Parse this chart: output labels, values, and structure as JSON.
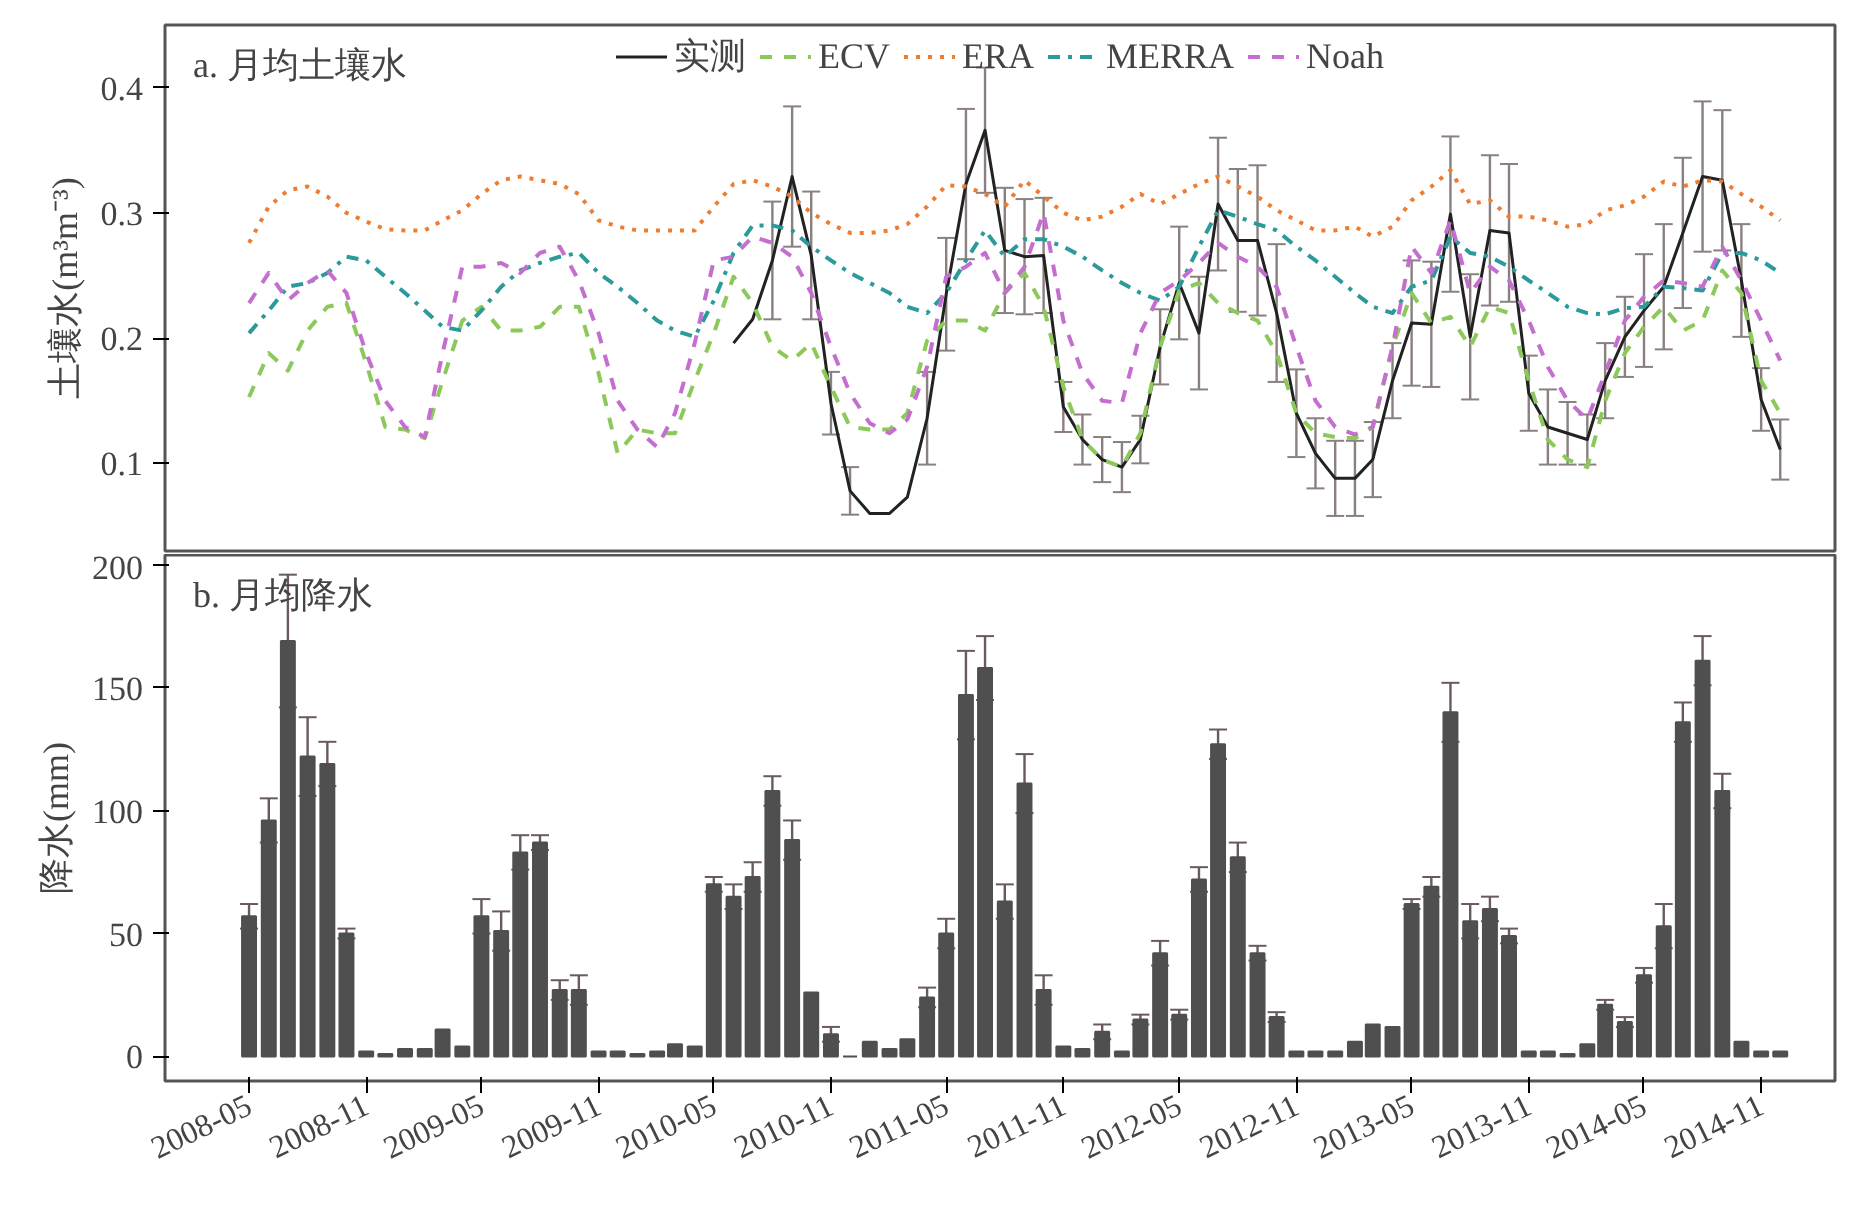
{
  "chart_data": [
    {
      "type": "line",
      "title": "a. 月均土壤水",
      "ylabel": "土壤水(m³m⁻³)",
      "x": [
        "2008-05",
        "2008-06",
        "2008-07",
        "2008-08",
        "2008-09",
        "2008-10",
        "2008-11",
        "2008-12",
        "2009-01",
        "2009-02",
        "2009-03",
        "2009-04",
        "2009-05",
        "2009-06",
        "2009-07",
        "2009-08",
        "2009-09",
        "2009-10",
        "2009-11",
        "2009-12",
        "2010-01",
        "2010-02",
        "2010-03",
        "2010-04",
        "2010-05",
        "2010-06",
        "2010-07",
        "2010-08",
        "2010-09",
        "2010-10",
        "2010-11",
        "2010-12",
        "2011-01",
        "2011-02",
        "2011-03",
        "2011-04",
        "2011-05",
        "2011-06",
        "2011-07",
        "2011-08",
        "2011-09",
        "2011-10",
        "2011-11",
        "2011-12",
        "2012-01",
        "2012-02",
        "2012-03",
        "2012-04",
        "2012-05",
        "2012-06",
        "2012-07",
        "2012-08",
        "2012-09",
        "2012-10",
        "2012-11",
        "2012-12",
        "2013-01",
        "2013-02",
        "2013-03",
        "2013-04",
        "2013-05",
        "2013-06",
        "2013-07",
        "2013-08",
        "2013-09",
        "2013-10",
        "2013-11",
        "2013-12",
        "2014-01",
        "2014-02",
        "2014-03",
        "2014-04",
        "2014-05",
        "2014-06",
        "2014-07",
        "2014-08",
        "2014-09",
        "2014-10",
        "2014-11",
        "2014-12"
      ],
      "xlim": [
        "2007-12-21",
        "2015-02-25"
      ],
      "ylim": [
        0.03,
        0.45
      ],
      "yticks": [
        0.1,
        0.2,
        0.3,
        0.4
      ],
      "tick_labels": "y",
      "grid": false,
      "legend": "top",
      "series": [
        {
          "name": "实测",
          "color": "#222222",
          "line_style": "solid",
          "values": [
            null,
            null,
            null,
            null,
            null,
            null,
            null,
            null,
            null,
            null,
            null,
            null,
            null,
            null,
            null,
            null,
            null,
            null,
            null,
            null,
            null,
            null,
            null,
            null,
            null,
            0.196,
            0.215,
            0.262,
            0.329,
            0.266,
            0.148,
            0.078,
            0.06,
            0.06,
            0.073,
            0.136,
            0.235,
            0.323,
            0.366,
            0.27,
            0.265,
            0.266,
            0.145,
            0.119,
            0.103,
            0.097,
            0.119,
            0.193,
            0.244,
            0.204,
            0.307,
            0.278,
            0.278,
            0.22,
            0.14,
            0.108,
            0.088,
            0.088,
            0.103,
            0.166,
            0.212,
            0.211,
            0.299,
            0.201,
            0.286,
            0.284,
            0.156,
            0.129,
            0.124,
            0.119,
            0.166,
            0.201,
            0.222,
            0.241,
            0.284,
            0.329,
            0.326,
            0.246,
            0.151,
            0.111
          ],
          "errors": [
            null,
            null,
            null,
            null,
            null,
            null,
            null,
            null,
            null,
            null,
            null,
            null,
            null,
            null,
            null,
            null,
            null,
            null,
            null,
            null,
            null,
            null,
            null,
            null,
            null,
            null,
            null,
            0.047,
            0.056,
            0.051,
            0.025,
            0.019,
            null,
            null,
            null,
            0.037,
            0.045,
            0.06,
            0.05,
            0.05,
            0.046,
            0.046,
            0.02,
            0.02,
            0.018,
            0.02,
            0.019,
            0.03,
            0.045,
            0.045,
            0.053,
            0.057,
            0.06,
            0.055,
            0.035,
            0.028,
            0.03,
            0.03,
            0.03,
            0.03,
            0.05,
            0.05,
            0.062,
            0.05,
            0.06,
            0.055,
            0.03,
            0.03,
            0.025,
            0.02,
            0.03,
            0.032,
            0.045,
            0.05,
            0.06,
            0.06,
            0.056,
            0.045,
            0.025,
            0.024
          ]
        },
        {
          "name": "ECV",
          "color": "#8dc95a",
          "line_style": "dashed",
          "values": [
            0.153,
            0.188,
            0.174,
            0.206,
            0.225,
            0.228,
            0.18,
            0.129,
            0.127,
            0.12,
            0.166,
            0.214,
            0.225,
            0.206,
            0.206,
            0.209,
            0.225,
            0.225,
            0.172,
            0.108,
            0.127,
            0.124,
            0.124,
            0.166,
            0.204,
            0.249,
            0.228,
            0.193,
            0.182,
            0.196,
            0.161,
            0.129,
            0.127,
            0.127,
            0.14,
            0.198,
            0.214,
            0.214,
            0.206,
            0.236,
            0.252,
            0.225,
            0.161,
            0.119,
            0.103,
            0.097,
            0.124,
            0.193,
            0.238,
            0.244,
            0.228,
            0.22,
            0.214,
            0.188,
            0.14,
            0.124,
            0.121,
            0.12,
            0.129,
            0.193,
            0.236,
            0.212,
            0.217,
            0.193,
            0.225,
            0.22,
            0.166,
            0.119,
            0.103,
            0.097,
            0.15,
            0.188,
            0.209,
            0.225,
            0.206,
            0.214,
            0.254,
            0.236,
            0.166,
            0.14
          ]
        },
        {
          "name": "ERA",
          "color": "#ee7d31",
          "line_style": "dotted",
          "values": [
            0.276,
            0.305,
            0.318,
            0.321,
            0.313,
            0.3,
            0.293,
            0.287,
            0.286,
            0.286,
            0.294,
            0.302,
            0.315,
            0.326,
            0.329,
            0.326,
            0.323,
            0.315,
            0.294,
            0.289,
            0.286,
            0.286,
            0.286,
            0.286,
            0.305,
            0.323,
            0.326,
            0.321,
            0.313,
            0.3,
            0.291,
            0.284,
            0.284,
            0.286,
            0.291,
            0.305,
            0.322,
            0.321,
            0.315,
            0.305,
            0.326,
            0.313,
            0.3,
            0.294,
            0.297,
            0.305,
            0.315,
            0.307,
            0.315,
            0.323,
            0.329,
            0.321,
            0.313,
            0.302,
            0.294,
            0.286,
            0.286,
            0.289,
            0.281,
            0.289,
            0.31,
            0.321,
            0.334,
            0.307,
            0.31,
            0.297,
            0.297,
            0.294,
            0.289,
            0.291,
            0.302,
            0.306,
            0.313,
            0.325,
            0.321,
            0.326,
            0.325,
            0.315,
            0.305,
            0.294
          ]
        },
        {
          "name": "MERRA",
          "color": "#2a9a9a",
          "line_style": "dashdot",
          "values": [
            0.204,
            0.222,
            0.241,
            0.244,
            0.252,
            0.265,
            0.262,
            0.249,
            0.236,
            0.222,
            0.209,
            0.206,
            0.222,
            0.241,
            0.254,
            0.26,
            0.265,
            0.268,
            0.252,
            0.241,
            0.228,
            0.214,
            0.206,
            0.201,
            0.23,
            0.268,
            0.29,
            0.29,
            0.286,
            0.273,
            0.262,
            0.252,
            0.244,
            0.236,
            0.225,
            0.22,
            0.236,
            0.262,
            0.286,
            0.265,
            0.279,
            0.279,
            0.273,
            0.265,
            0.254,
            0.244,
            0.236,
            0.23,
            0.241,
            0.273,
            0.302,
            0.297,
            0.291,
            0.286,
            0.273,
            0.262,
            0.249,
            0.236,
            0.225,
            0.22,
            0.241,
            0.246,
            0.281,
            0.268,
            0.265,
            0.257,
            0.246,
            0.236,
            0.225,
            0.22,
            0.219,
            0.224,
            0.225,
            0.241,
            0.24,
            0.238,
            0.268,
            0.268,
            0.262,
            0.252
          ]
        },
        {
          "name": "Noah",
          "color": "#c46fcf",
          "line_style": "dashed",
          "values": [
            0.228,
            0.252,
            0.23,
            0.244,
            0.254,
            0.236,
            0.188,
            0.15,
            0.129,
            0.121,
            0.188,
            0.257,
            0.257,
            0.26,
            0.252,
            0.268,
            0.273,
            0.246,
            0.204,
            0.15,
            0.127,
            0.113,
            0.14,
            0.196,
            0.262,
            0.265,
            0.281,
            0.276,
            0.265,
            0.236,
            0.193,
            0.156,
            0.132,
            0.124,
            0.135,
            0.177,
            0.249,
            0.257,
            0.268,
            0.236,
            0.257,
            0.3,
            0.214,
            0.172,
            0.15,
            0.148,
            0.204,
            0.236,
            0.246,
            0.26,
            0.276,
            0.265,
            0.257,
            0.241,
            0.193,
            0.15,
            0.129,
            0.123,
            0.129,
            0.193,
            0.273,
            0.252,
            0.294,
            0.236,
            0.257,
            0.246,
            0.214,
            0.177,
            0.15,
            0.135,
            0.172,
            0.214,
            0.233,
            0.246,
            0.244,
            0.241,
            0.273,
            0.246,
            0.214,
            0.182
          ]
        }
      ]
    },
    {
      "type": "bar",
      "title": "b. 月均降水",
      "ylabel": "降水(mm)",
      "color": "#4f4f4f",
      "grid": false,
      "x": [
        "2008-05",
        "2008-06",
        "2008-07",
        "2008-08",
        "2008-09",
        "2008-10",
        "2008-11",
        "2008-12",
        "2009-01",
        "2009-02",
        "2009-03",
        "2009-04",
        "2009-05",
        "2009-06",
        "2009-07",
        "2009-08",
        "2009-09",
        "2009-10",
        "2009-11",
        "2009-12",
        "2010-01",
        "2010-02",
        "2010-03",
        "2010-04",
        "2010-05",
        "2010-06",
        "2010-07",
        "2010-08",
        "2010-09",
        "2010-10",
        "2010-11",
        "2010-12",
        "2011-01",
        "2011-02",
        "2011-03",
        "2011-04",
        "2011-05",
        "2011-06",
        "2011-07",
        "2011-08",
        "2011-09",
        "2011-10",
        "2011-11",
        "2011-12",
        "2012-01",
        "2012-02",
        "2012-03",
        "2012-04",
        "2012-05",
        "2012-06",
        "2012-07",
        "2012-08",
        "2012-09",
        "2012-10",
        "2012-11",
        "2012-12",
        "2013-01",
        "2013-02",
        "2013-03",
        "2013-04",
        "2013-05",
        "2013-06",
        "2013-07",
        "2013-08",
        "2013-09",
        "2013-10",
        "2013-11",
        "2013-12",
        "2014-01",
        "2014-02",
        "2014-03",
        "2014-04",
        "2014-05",
        "2014-06",
        "2014-07",
        "2014-08",
        "2014-09",
        "2014-10",
        "2014-11",
        "2014-12"
      ],
      "values": [
        57,
        96,
        169,
        122,
        119,
        50,
        2,
        1,
        3,
        3,
        11,
        4,
        57,
        51,
        83,
        87,
        27,
        27,
        2,
        2,
        1,
        2,
        5,
        4,
        70,
        65,
        73,
        108,
        88,
        26,
        9,
        0,
        6,
        3,
        7,
        24,
        50,
        147,
        158,
        63,
        111,
        27,
        4,
        3,
        10,
        2,
        15,
        42,
        17,
        72,
        127,
        81,
        42,
        16,
        2,
        2,
        2,
        6,
        13,
        12,
        62,
        69,
        140,
        55,
        60,
        49,
        2,
        2,
        1,
        5,
        21,
        14,
        33,
        53,
        136,
        161,
        108,
        6,
        2,
        2
      ],
      "errors": [
        5,
        9,
        27,
        16,
        9,
        2,
        null,
        null,
        null,
        null,
        null,
        null,
        7,
        8,
        7,
        3,
        4,
        6,
        null,
        null,
        null,
        null,
        null,
        null,
        3,
        5,
        6,
        6,
        8,
        null,
        3,
        null,
        null,
        null,
        null,
        4,
        6,
        18,
        13,
        7,
        12,
        6,
        null,
        null,
        3,
        null,
        2,
        5,
        2,
        5,
        6,
        6,
        3,
        2,
        null,
        null,
        null,
        null,
        null,
        null,
        2,
        4,
        12,
        7,
        5,
        3,
        null,
        null,
        null,
        null,
        2,
        2,
        3,
        9,
        8,
        10,
        7,
        null,
        null,
        null
      ],
      "xlim": [
        "2007-12-21",
        "2015-02-25"
      ],
      "xticks": [
        "2008-05",
        "2008-11",
        "2009-05",
        "2009-11",
        "2010-05",
        "2010-11",
        "2011-05",
        "2011-11",
        "2012-05",
        "2012-11",
        "2013-05",
        "2013-11",
        "2014-05",
        "2014-11"
      ],
      "ylim": [
        -10,
        204
      ],
      "yticks": [
        0,
        50,
        100,
        150,
        200
      ]
    }
  ]
}
